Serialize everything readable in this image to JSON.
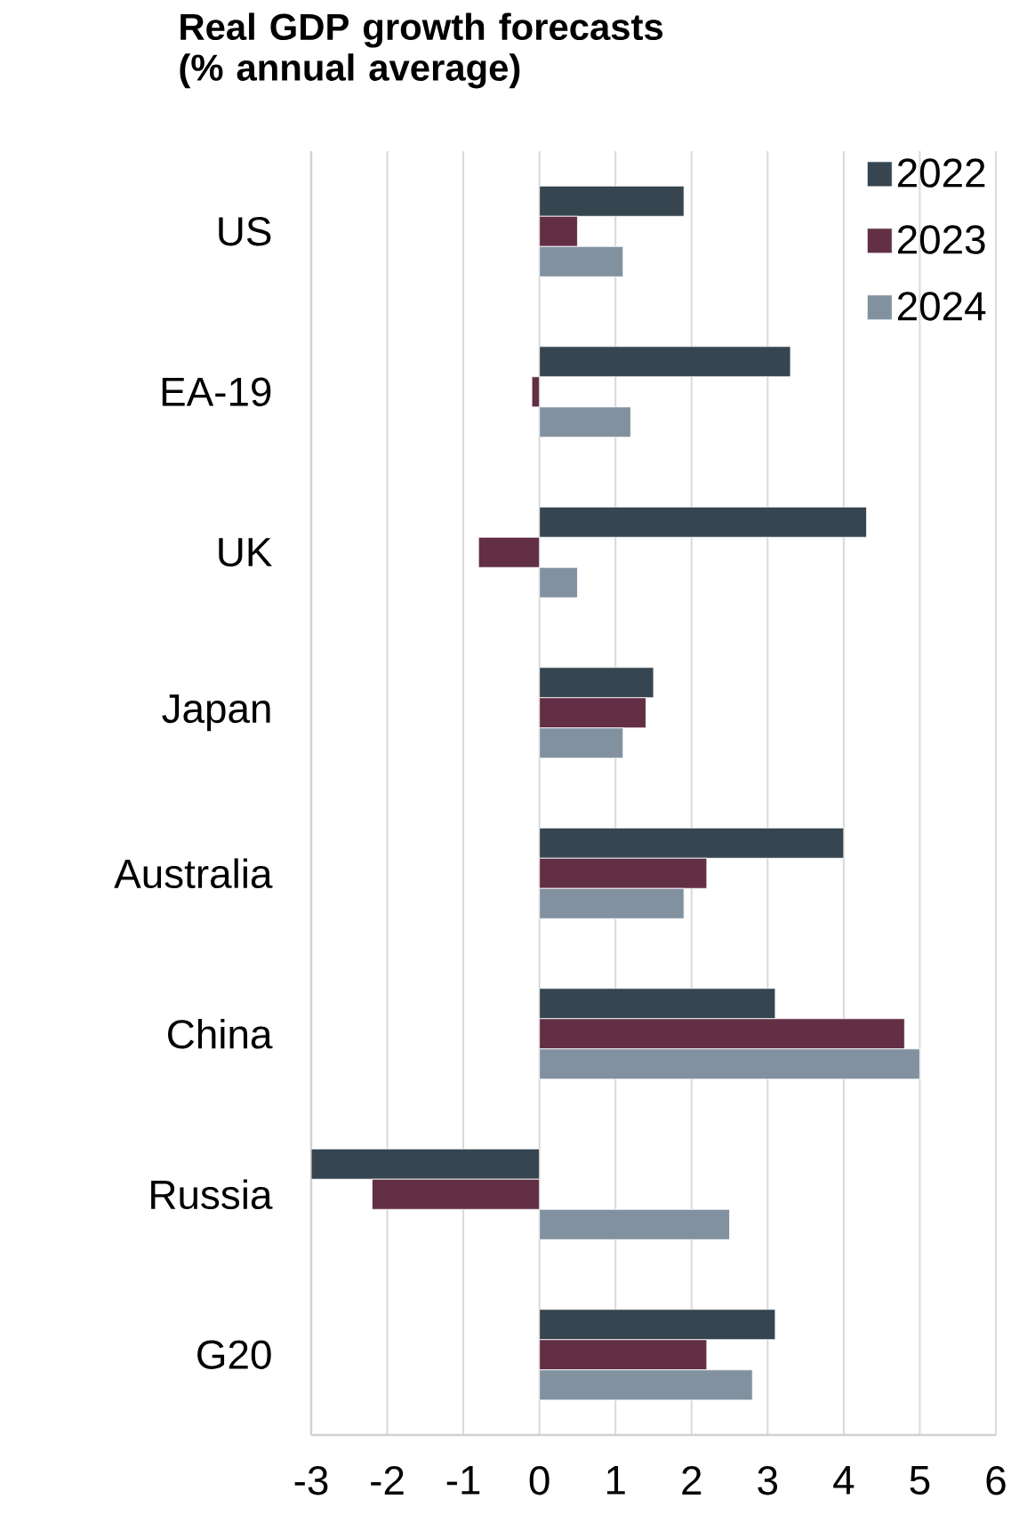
{
  "chart_data": {
    "type": "bar",
    "orientation": "horizontal",
    "title": "Real GDP growth forecasts (% annual average)",
    "categories": [
      "US",
      "EA-19",
      "UK",
      "Japan",
      "Australia",
      "China",
      "Russia",
      "G20"
    ],
    "series": [
      {
        "name": "2022",
        "color": "#36454f",
        "values": [
          1.9,
          3.3,
          4.3,
          1.5,
          4.0,
          3.1,
          -3.0,
          3.1
        ]
      },
      {
        "name": "2023",
        "color": "#622f45",
        "values": [
          0.5,
          -0.1,
          -0.8,
          1.4,
          2.2,
          4.8,
          -2.2,
          2.2
        ]
      },
      {
        "name": "2024",
        "color": "#8291a0",
        "values": [
          1.1,
          1.2,
          0.5,
          1.1,
          1.9,
          5.0,
          2.5,
          2.8
        ]
      }
    ],
    "xlim": [
      -3,
      6
    ],
    "xticks": [
      -3,
      -2,
      -1,
      0,
      1,
      2,
      3,
      4,
      5,
      6
    ],
    "grid": "x",
    "legend": "top right"
  }
}
